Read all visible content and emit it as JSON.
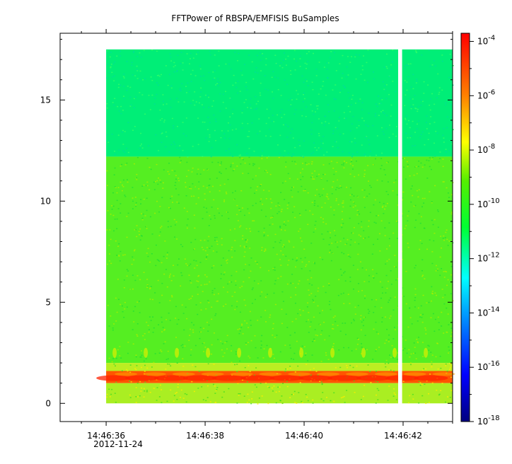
{
  "chart_data": {
    "type": "heatmap",
    "title": "FFTPower of RBSPA/EMFISIS  BuSamples",
    "xlabel": "",
    "ylabel": "",
    "x_date_label": "2012-11-24",
    "x_ticks": [
      {
        "value": 0,
        "label": "14:46:36"
      },
      {
        "value": 2,
        "label": "14:46:38"
      },
      {
        "value": 4,
        "label": "14:46:40"
      },
      {
        "value": 6,
        "label": "14:46:42"
      }
    ],
    "xlim": [
      -0.93,
      7.0
    ],
    "y_ticks": [
      0,
      5,
      10,
      15
    ],
    "ylim": [
      -0.9,
      18.3
    ],
    "colorbar": {
      "scale": "log",
      "range_exponents": [
        -18,
        -3.7
      ],
      "tick_exponents": [
        -4,
        -6,
        -8,
        -10,
        -12,
        -14,
        -16,
        -18
      ],
      "tick_base": "10",
      "colormap": [
        "#00007f",
        "#0000ff",
        "#007fff",
        "#00ffff",
        "#7fff7f",
        "#ffff00",
        "#ff7f00",
        "#ff0000",
        "#7f0000"
      ]
    },
    "data_extent": {
      "x_start": 0,
      "x_end": 7.0,
      "y_min": 0,
      "y_max": 17.5
    },
    "data_gap": {
      "x_start": 5.9,
      "x_end": 5.98
    },
    "regions": [
      {
        "y_range": [
          12.2,
          17.5
        ],
        "log_power": -11.5,
        "description_color": "#00ee77"
      },
      {
        "y_range": [
          2.0,
          12.2
        ],
        "log_power": -10.2,
        "description_color": "#55ee22"
      },
      {
        "y_range": [
          1.6,
          2.0
        ],
        "log_power": -9.2,
        "description_color": "#bbee22"
      },
      {
        "y_range": [
          1.0,
          1.6
        ],
        "log_power": -6.5,
        "description_color": "#ff5500"
      },
      {
        "y_range": [
          0.0,
          1.0
        ],
        "log_power": -9.5,
        "description_color": "#aaee22"
      }
    ]
  }
}
